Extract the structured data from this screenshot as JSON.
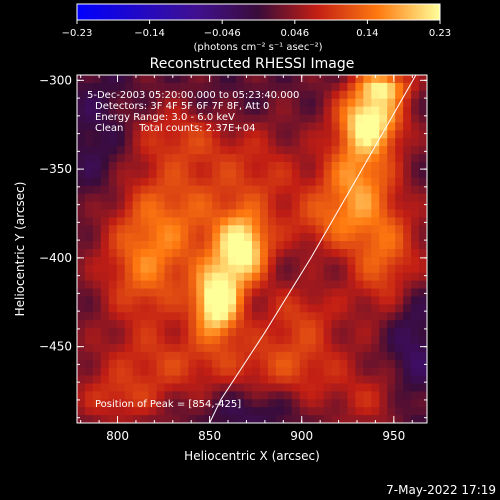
{
  "chart_data": {
    "type": "heatmap",
    "title": "Reconstructed RHESSI Image",
    "xlabel": "Heliocentric X (arcsec)",
    "ylabel": "Heliocentric Y (arcsec)",
    "xlim": [
      778,
      968
    ],
    "ylim": [
      -493,
      -297
    ],
    "xticks": [
      800,
      850,
      900,
      950
    ],
    "yticks": [
      -300,
      -350,
      -400,
      -450
    ],
    "colorbar": {
      "ticks": [
        "-0.23",
        "-0.14",
        "-0.046",
        "0.046",
        "0.14",
        "0.23"
      ],
      "range": [
        -0.23,
        0.23
      ],
      "units_label": "(photons cm⁻² s⁻¹ asec⁻²)"
    },
    "info": {
      "line1": "5-Dec-2003 05:20:00.000 to 05:23:40.000",
      "line2": "Detectors: 3F 4F 5F 6F 7F 8F, Att 0",
      "line3": "Energy Range: 3.0 - 6.0 keV",
      "line4": "Clean     Total counts: 2.37E+04"
    },
    "peak_label": "Position of Peak = [854,-425]",
    "sources": [
      {
        "x": 854,
        "y": -425,
        "sx": 9,
        "sy": 14,
        "amp": 0.23
      },
      {
        "x": 868,
        "y": -395,
        "sx": 10,
        "sy": 14,
        "amp": 0.2
      },
      {
        "x": 937,
        "y": -322,
        "sx": 12,
        "sy": 13,
        "amp": 0.22
      },
      {
        "x": 945,
        "y": -303,
        "sx": 10,
        "sy": 6,
        "amp": 0.14
      },
      {
        "x": 930,
        "y": -355,
        "sx": 14,
        "sy": 16,
        "amp": 0.13
      },
      {
        "x": 948,
        "y": -400,
        "sx": 16,
        "sy": 22,
        "amp": 0.12
      },
      {
        "x": 915,
        "y": -380,
        "sx": 18,
        "sy": 12,
        "amp": 0.08
      },
      {
        "x": 830,
        "y": -375,
        "sx": 28,
        "sy": 25,
        "amp": 0.1
      },
      {
        "x": 815,
        "y": -410,
        "sx": 16,
        "sy": 22,
        "amp": 0.09
      },
      {
        "x": 845,
        "y": -330,
        "sx": 26,
        "sy": 12,
        "amp": 0.07
      },
      {
        "x": 830,
        "y": -460,
        "sx": 30,
        "sy": 14,
        "amp": 0.07
      },
      {
        "x": 895,
        "y": -460,
        "sx": 22,
        "sy": 16,
        "amp": 0.08
      },
      {
        "x": 900,
        "y": -430,
        "sx": 14,
        "sy": 12,
        "amp": 0.06
      },
      {
        "x": 800,
        "y": -480,
        "sx": 16,
        "sy": 10,
        "amp": 0.06
      },
      {
        "x": 940,
        "y": -480,
        "sx": 16,
        "sy": 12,
        "amp": 0.05
      },
      {
        "x": 880,
        "y": -355,
        "sx": 18,
        "sy": 14,
        "amp": 0.05
      },
      {
        "x": 790,
        "y": -340,
        "sx": 14,
        "sy": 30,
        "amp": -0.05
      },
      {
        "x": 960,
        "y": -440,
        "sx": 10,
        "sy": 40,
        "amp": -0.06
      },
      {
        "x": 858,
        "y": -322,
        "sx": 14,
        "sy": 12,
        "amp": -0.04
      },
      {
        "x": 873,
        "y": -485,
        "sx": 18,
        "sy": 10,
        "amp": -0.05
      }
    ],
    "limb": [
      [
        962,
        -297
      ],
      [
        930,
        -355
      ],
      [
        905,
        -400
      ],
      [
        880,
        -442
      ],
      [
        856,
        -480
      ],
      [
        850,
        -493
      ]
    ]
  },
  "footer": {
    "timestamp": "7-May-2022 17:19"
  }
}
